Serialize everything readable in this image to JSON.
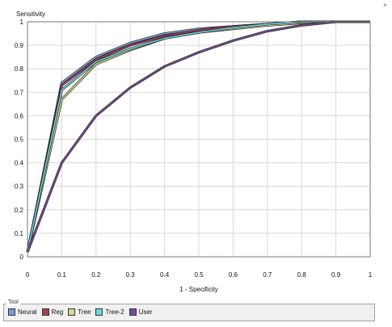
{
  "corner_mark": "×",
  "chart_data": {
    "type": "line",
    "title": "",
    "ylabel": "Sensitivity",
    "xlabel": "1 - Specificity",
    "xlim": [
      0,
      1
    ],
    "ylim": [
      0,
      1
    ],
    "grid": true,
    "xticks": [
      "0",
      "0.1",
      "0.2",
      "0.3",
      "0.4",
      "0.5",
      "0.6",
      "0.7",
      "0.8",
      "0.9",
      "1"
    ],
    "yticks": [
      "0",
      "0.1",
      "0.2",
      "0.3",
      "0.4",
      "0.5",
      "0.6",
      "0.7",
      "0.8",
      "0.9",
      "1"
    ],
    "x": [
      0,
      0.1,
      0.2,
      0.3,
      0.4,
      0.5,
      0.6,
      0.7,
      0.8,
      0.9,
      1.0
    ],
    "series": [
      {
        "name": "Neural",
        "color": "#7e9bd6",
        "values": [
          0.02,
          0.74,
          0.85,
          0.91,
          0.95,
          0.97,
          0.98,
          0.99,
          1.0,
          1.0,
          1.0
        ]
      },
      {
        "name": "Reg",
        "color": "#a4405a",
        "values": [
          0.02,
          0.73,
          0.84,
          0.9,
          0.94,
          0.965,
          0.98,
          0.99,
          1.0,
          1.0,
          1.0
        ]
      },
      {
        "name": "Tree",
        "color": "#d8d888",
        "values": [
          0.02,
          0.67,
          0.82,
          0.88,
          0.93,
          0.955,
          0.97,
          0.985,
          0.995,
          1.0,
          1.0
        ]
      },
      {
        "name": "Tree-2",
        "color": "#6ed6de",
        "values": [
          0.02,
          0.71,
          0.83,
          0.885,
          0.93,
          0.955,
          0.975,
          0.99,
          1.0,
          1.0,
          1.0
        ]
      },
      {
        "name": "User",
        "color": "#7a4a9a",
        "values": [
          0.02,
          0.4,
          0.6,
          0.72,
          0.81,
          0.87,
          0.92,
          0.96,
          0.985,
          1.0,
          1.0
        ]
      }
    ]
  },
  "legend": {
    "title": "Tool",
    "items": [
      "Neural",
      "Reg",
      "Tree",
      "Tree-2",
      "User"
    ]
  }
}
